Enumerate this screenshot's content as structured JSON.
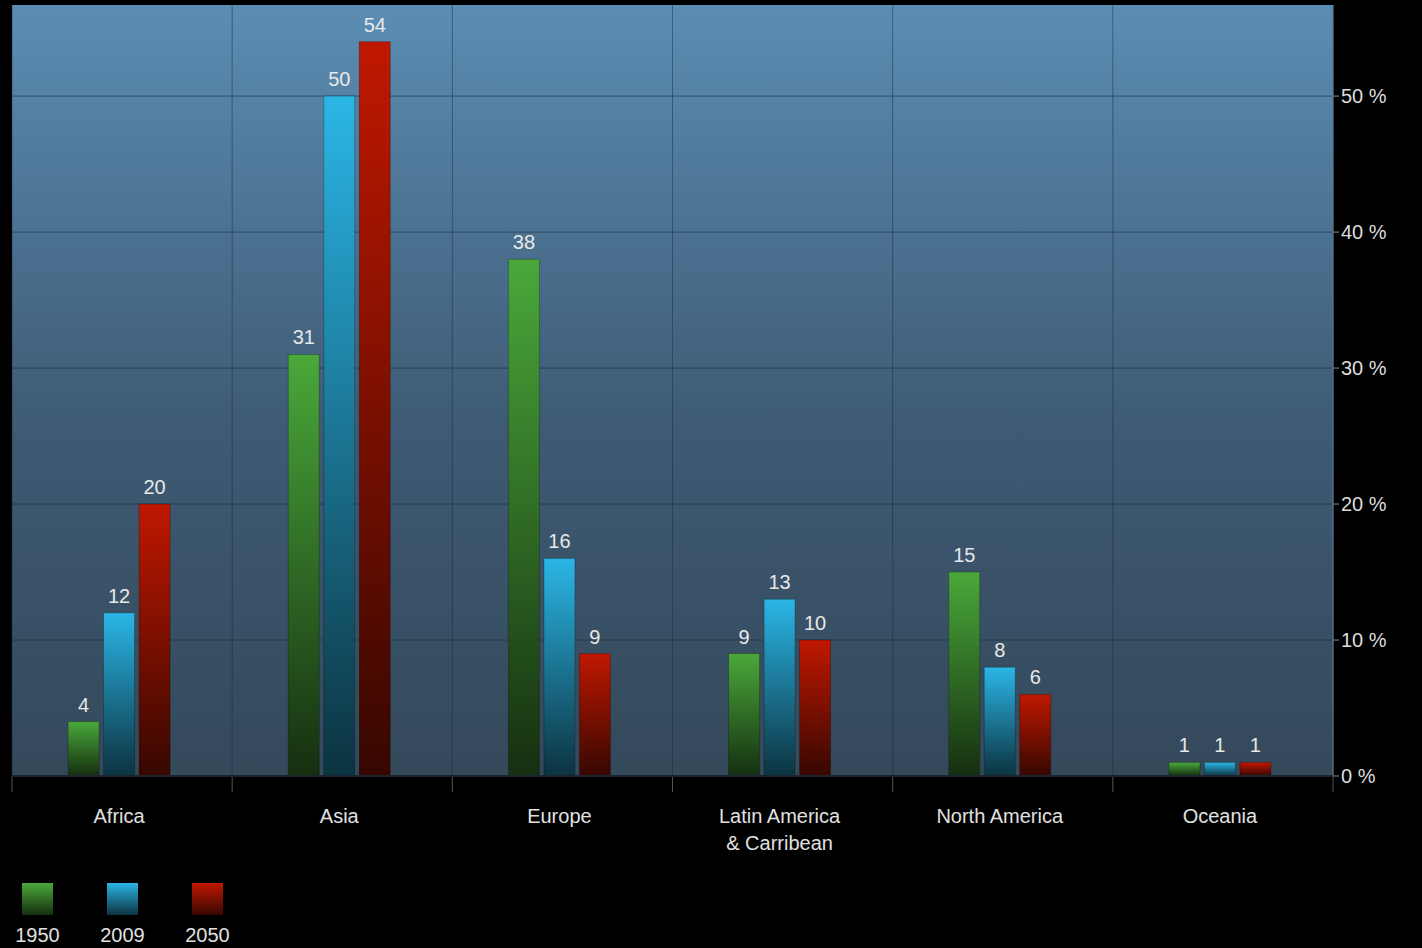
{
  "chart_data": {
    "type": "bar",
    "categories": [
      "Africa",
      "Asia",
      "Europe",
      "Latin America & Carribean",
      "North America",
      "Oceania"
    ],
    "series": [
      {
        "name": "1950",
        "color": "#4aa83a",
        "values": [
          4,
          31,
          38,
          9,
          15,
          1
        ]
      },
      {
        "name": "2009",
        "color": "#2bb6e6",
        "values": [
          12,
          50,
          16,
          13,
          8,
          1
        ]
      },
      {
        "name": "2050",
        "color": "#c01800",
        "values": [
          20,
          54,
          9,
          10,
          6,
          1
        ]
      }
    ],
    "ylim": [
      0,
      56.7
    ],
    "yticks": [
      {
        "value": 0,
        "label": "0 %"
      },
      {
        "value": 10,
        "label": "10 %"
      },
      {
        "value": 20,
        "label": "20 %"
      },
      {
        "value": 30,
        "label": "30 %"
      },
      {
        "value": 40,
        "label": "40 %"
      },
      {
        "value": 50,
        "label": "50 %"
      }
    ],
    "grid": true,
    "legend": "bottom-left",
    "data_labels": true
  }
}
